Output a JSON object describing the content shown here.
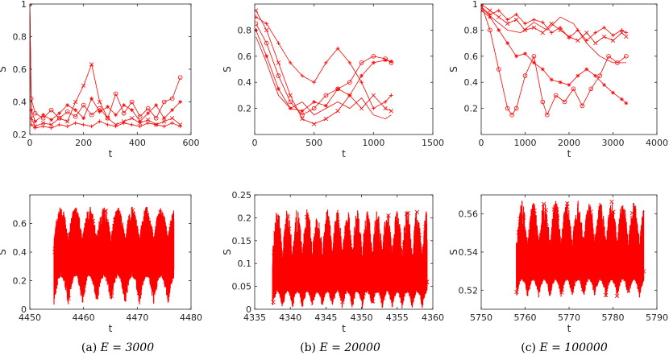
{
  "series_color": "#ff0000",
  "chart_data": [
    {
      "type": "line",
      "panel": "top-left",
      "xlim": [
        0,
        600
      ],
      "ylim": [
        0.2,
        1.0
      ],
      "xticks": [
        0,
        200,
        400,
        600
      ],
      "yticks": [
        0.2,
        0.4,
        0.6,
        0.8,
        1.0
      ],
      "xtick_labels": [
        "0",
        "200",
        "400",
        "600"
      ],
      "ytick_labels": [
        "0.2",
        "0.4",
        "0.6",
        "0.8",
        "1"
      ],
      "xlabel": "t",
      "ylabel": "S",
      "series": [
        {
          "marker": "o",
          "x": [
            0,
            5,
            20,
            50,
            80,
            110,
            140,
            170,
            200,
            230,
            260,
            290,
            320,
            350,
            380,
            410,
            440,
            470,
            500,
            530,
            560
          ],
          "y": [
            1.0,
            0.42,
            0.33,
            0.3,
            0.35,
            0.3,
            0.34,
            0.31,
            0.38,
            0.32,
            0.36,
            0.3,
            0.45,
            0.33,
            0.4,
            0.31,
            0.36,
            0.3,
            0.4,
            0.42,
            0.55
          ]
        },
        {
          "marker": "x",
          "x": [
            0,
            5,
            20,
            50,
            80,
            110,
            140,
            170,
            200,
            230,
            260,
            290,
            320,
            350,
            380,
            410,
            440,
            470,
            500,
            530,
            560
          ],
          "y": [
            1.0,
            0.3,
            0.25,
            0.27,
            0.26,
            0.3,
            0.28,
            0.4,
            0.5,
            0.63,
            0.4,
            0.3,
            0.26,
            0.28,
            0.3,
            0.27,
            0.29,
            0.26,
            0.28,
            0.3,
            0.26
          ]
        },
        {
          "marker": "*",
          "x": [
            0,
            5,
            20,
            50,
            80,
            110,
            140,
            170,
            200,
            230,
            260,
            290,
            320,
            350,
            380,
            410,
            440,
            470,
            500,
            530,
            560
          ],
          "y": [
            1.0,
            0.35,
            0.28,
            0.32,
            0.29,
            0.33,
            0.38,
            0.35,
            0.3,
            0.42,
            0.34,
            0.37,
            0.32,
            0.38,
            0.35,
            0.28,
            0.33,
            0.38,
            0.3,
            0.35,
            0.4
          ]
        },
        {
          "marker": "+",
          "x": [
            0,
            5,
            20,
            50,
            80,
            110,
            140,
            170,
            200,
            230,
            260,
            290,
            320,
            350,
            380,
            410,
            440,
            470,
            500,
            530,
            560
          ],
          "y": [
            1.0,
            0.26,
            0.24,
            0.25,
            0.24,
            0.26,
            0.25,
            0.27,
            0.26,
            0.25,
            0.28,
            0.26,
            0.25,
            0.27,
            0.26,
            0.25,
            0.27,
            0.26,
            0.25,
            0.27,
            0.25
          ]
        }
      ]
    },
    {
      "type": "line",
      "panel": "top-middle",
      "xlim": [
        0,
        1500
      ],
      "ylim": [
        0.0,
        1.0
      ],
      "xticks": [
        0,
        500,
        1000,
        1500
      ],
      "yticks": [
        0.2,
        0.4,
        0.6,
        0.8
      ],
      "xtick_labels": [
        "0",
        "500",
        "1000",
        "1500"
      ],
      "ytick_labels": [
        "0.2",
        "0.4",
        "0.6",
        "0.8"
      ],
      "xlabel": "t",
      "ylabel": "S",
      "series": [
        {
          "marker": "o",
          "x": [
            10,
            100,
            200,
            300,
            400,
            500,
            600,
            700,
            800,
            900,
            1000,
            1100,
            1150
          ],
          "y": [
            0.85,
            0.7,
            0.45,
            0.25,
            0.15,
            0.2,
            0.3,
            0.35,
            0.4,
            0.55,
            0.6,
            0.58,
            0.55
          ]
        },
        {
          "marker": "x",
          "x": [
            10,
            100,
            200,
            300,
            400,
            500,
            600,
            700,
            800,
            900,
            1000,
            1100,
            1150
          ],
          "y": [
            0.95,
            0.8,
            0.55,
            0.3,
            0.12,
            0.08,
            0.12,
            0.18,
            0.3,
            0.2,
            0.3,
            0.2,
            0.18
          ]
        },
        {
          "marker": "*",
          "x": [
            10,
            100,
            200,
            300,
            400,
            500,
            600,
            700,
            800,
            900,
            1000,
            1100,
            1150
          ],
          "y": [
            0.8,
            0.6,
            0.35,
            0.2,
            0.18,
            0.25,
            0.22,
            0.35,
            0.3,
            0.45,
            0.55,
            0.57,
            0.56
          ]
        },
        {
          "marker": "+",
          "x": [
            10,
            100,
            200,
            300,
            400,
            500,
            600,
            700,
            800,
            900,
            1000,
            1100,
            1150
          ],
          "y": [
            0.9,
            0.85,
            0.7,
            0.55,
            0.45,
            0.4,
            0.55,
            0.66,
            0.55,
            0.4,
            0.2,
            0.25,
            0.3
          ]
        },
        {
          "marker": "none",
          "x": [
            10,
            100,
            200,
            300,
            400,
            500,
            600,
            700,
            800,
            900,
            1000,
            1100,
            1150
          ],
          "y": [
            0.75,
            0.55,
            0.3,
            0.2,
            0.25,
            0.15,
            0.2,
            0.25,
            0.2,
            0.28,
            0.15,
            0.12,
            0.15
          ]
        }
      ]
    },
    {
      "type": "line",
      "panel": "top-right",
      "xlim": [
        0,
        4000
      ],
      "ylim": [
        0.0,
        1.0
      ],
      "xticks": [
        0,
        1000,
        2000,
        3000,
        4000
      ],
      "yticks": [
        0.2,
        0.4,
        0.6,
        0.8,
        1.0
      ],
      "xtick_labels": [
        "0",
        "1000",
        "2000",
        "3000",
        "4000"
      ],
      "ytick_labels": [
        "0.2",
        "0.4",
        "0.6",
        "0.8",
        "1"
      ],
      "xlabel": "t",
      "ylabel": "S",
      "series": [
        {
          "marker": "o",
          "x": [
            0,
            200,
            400,
            600,
            700,
            800,
            1000,
            1200,
            1400,
            1500,
            1700,
            1900,
            2100,
            2300,
            2500,
            2700,
            2900,
            3100,
            3300
          ],
          "y": [
            1.0,
            0.8,
            0.5,
            0.2,
            0.15,
            0.2,
            0.45,
            0.6,
            0.25,
            0.15,
            0.3,
            0.25,
            0.35,
            0.22,
            0.35,
            0.45,
            0.6,
            0.55,
            0.6
          ]
        },
        {
          "marker": "x",
          "x": [
            0,
            200,
            400,
            600,
            800,
            1000,
            1200,
            1400,
            1600,
            1800,
            2000,
            2200,
            2400,
            2600,
            2800,
            3000,
            3200,
            3300
          ],
          "y": [
            1.0,
            0.95,
            0.9,
            0.85,
            0.88,
            0.8,
            0.82,
            0.78,
            0.85,
            0.8,
            0.75,
            0.72,
            0.78,
            0.7,
            0.75,
            0.72,
            0.78,
            0.75
          ]
        },
        {
          "marker": "*",
          "x": [
            0,
            200,
            400,
            600,
            800,
            1000,
            1200,
            1400,
            1600,
            1800,
            2000,
            2200,
            2400,
            2600,
            2800,
            3000,
            3200,
            3300
          ],
          "y": [
            0.95,
            0.9,
            0.8,
            0.7,
            0.6,
            0.62,
            0.55,
            0.5,
            0.42,
            0.4,
            0.38,
            0.45,
            0.5,
            0.45,
            0.38,
            0.32,
            0.27,
            0.24
          ]
        },
        {
          "marker": "+",
          "x": [
            0,
            200,
            400,
            600,
            800,
            1000,
            1200,
            1400,
            1600,
            1800,
            2000,
            2200,
            2400,
            2600,
            2800,
            3000,
            3200,
            3300
          ],
          "y": [
            0.98,
            0.92,
            0.95,
            0.88,
            0.92,
            0.85,
            0.88,
            0.86,
            0.78,
            0.82,
            0.74,
            0.8,
            0.72,
            0.78,
            0.82,
            0.76,
            0.8,
            0.78
          ]
        },
        {
          "marker": "none",
          "x": [
            0,
            300,
            600,
            900,
            1200,
            1500,
            1800,
            2100,
            2400,
            2700,
            3000,
            3300
          ],
          "y": [
            0.97,
            0.88,
            0.8,
            0.78,
            0.86,
            0.8,
            0.9,
            0.85,
            0.7,
            0.6,
            0.55,
            0.55
          ]
        }
      ]
    },
    {
      "type": "line",
      "panel": "bottom-left",
      "xlim": [
        4450,
        4480
      ],
      "ylim": [
        0.0,
        0.8
      ],
      "xticks": [
        4450,
        4460,
        4470,
        4480
      ],
      "yticks": [
        0,
        0.2,
        0.4,
        0.6
      ],
      "xtick_labels": [
        "4450",
        "4460",
        "4470",
        "4480"
      ],
      "ytick_labels": [
        "0",
        "0.2",
        "0.4",
        "0.6"
      ],
      "xlabel": "t",
      "ylabel": "S",
      "oscillation": {
        "x_start": 4454.5,
        "x_end": 4476.8,
        "period": 2.65,
        "center": 0.36,
        "low": 0.02,
        "high": 0.72
      }
    },
    {
      "type": "line",
      "panel": "bottom-middle",
      "xlim": [
        4335,
        4360
      ],
      "ylim": [
        0.0,
        0.25
      ],
      "xticks": [
        4335,
        4340,
        4345,
        4350,
        4355,
        4360
      ],
      "yticks": [
        0,
        0.05,
        0.1,
        0.15,
        0.2,
        0.25
      ],
      "xtick_labels": [
        "4335",
        "4340",
        "4345",
        "4350",
        "4355",
        "4360"
      ],
      "ytick_labels": [
        "0",
        "0.05",
        "0.1",
        "0.15",
        "0.2",
        "0.25"
      ],
      "xlabel": "t",
      "ylabel": "S",
      "oscillation": {
        "x_start": 4337.5,
        "x_end": 4359.2,
        "period": 1.4,
        "center": 0.06,
        "low": 0.0,
        "high": 0.22
      }
    },
    {
      "type": "line",
      "panel": "bottom-right",
      "xlim": [
        5750,
        5790
      ],
      "ylim": [
        0.51,
        0.57
      ],
      "xticks": [
        5750,
        5760,
        5770,
        5780,
        5790
      ],
      "yticks": [
        0.52,
        0.54,
        0.56
      ],
      "xtick_labels": [
        "5750",
        "5760",
        "5770",
        "5780",
        "5790"
      ],
      "ytick_labels": [
        "0.52",
        "0.54",
        "0.56"
      ],
      "xlabel": "t",
      "ylabel": "S",
      "oscillation": {
        "x_start": 5758,
        "x_end": 5787,
        "period": 2.55,
        "center": 0.531,
        "low": 0.516,
        "high": 0.567
      }
    }
  ],
  "captions": [
    {
      "tag": "(a)",
      "math": "E = 3000"
    },
    {
      "tag": "(b)",
      "math": "E = 20000"
    },
    {
      "tag": "(c)",
      "math": "E = 100000"
    }
  ]
}
